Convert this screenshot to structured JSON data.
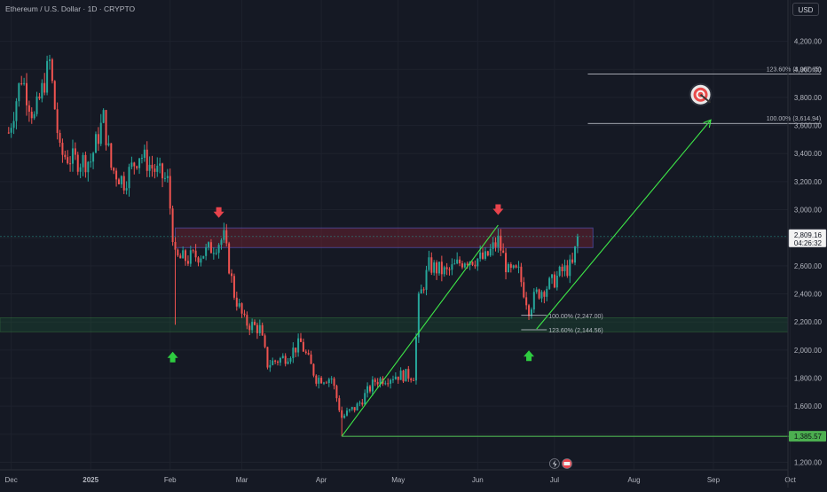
{
  "header": {
    "title": "Ethereum / U.S. Dollar · 1D · CRYPTO",
    "currency": "USD"
  },
  "colors": {
    "bg": "#151924",
    "up": "#26a69a",
    "down": "#ef5350",
    "grid": "#1e222d",
    "text": "#b2b5be",
    "green": "#4caf50",
    "neon": "#3ee848",
    "resistance": "#b7263a",
    "support": "#1f6b3a"
  },
  "chart_data": {
    "type": "candlestick",
    "title": "Ethereum / U.S. Dollar · 1D · CRYPTO",
    "currency": "USD",
    "y_ticks": [
      1200,
      1400,
      1600,
      1800,
      2000,
      2200,
      2400,
      2600,
      2800,
      3000,
      3200,
      3400,
      3600,
      3800,
      4000,
      4200
    ],
    "y_tick_labels": [
      "1,200.00",
      "1,400.00",
      "1,600.00",
      "1,800.00",
      "2,000.00",
      "2,200.00",
      "2,400.00",
      "2,600.00",
      "2,800.00",
      "3,000.00",
      "3,200.00",
      "3,400.00",
      "3,600.00",
      "3,800.00",
      "4,000.00",
      "4,200.00"
    ],
    "ylim": [
      1140,
      4450
    ],
    "x_ticks": [
      {
        "label": "Dec",
        "date": "2024-12-01"
      },
      {
        "label": "2025",
        "date": "2025-01-01"
      },
      {
        "label": "Feb",
        "date": "2025-02-01"
      },
      {
        "label": "Mar",
        "date": "2025-03-01"
      },
      {
        "label": "Apr",
        "date": "2025-04-01"
      },
      {
        "label": "May",
        "date": "2025-05-01"
      },
      {
        "label": "Jun",
        "date": "2025-06-01"
      },
      {
        "label": "Jul",
        "date": "2025-07-01"
      },
      {
        "label": "Aug",
        "date": "2025-08-01"
      },
      {
        "label": "Sep",
        "date": "2025-09-01"
      },
      {
        "label": "Oct",
        "date": "2025-10-01"
      }
    ],
    "xlim": [
      "2024-11-28",
      "2025-10-13"
    ],
    "path_points": [
      {
        "date": "2024-11-30",
        "price": 3550
      },
      {
        "date": "2024-12-05",
        "price": 3950
      },
      {
        "date": "2024-12-10",
        "price": 3650
      },
      {
        "date": "2024-12-16",
        "price": 4050
      },
      {
        "date": "2024-12-20",
        "price": 3400
      },
      {
        "date": "2024-12-26",
        "price": 3350
      },
      {
        "date": "2025-01-01",
        "price": 3350
      },
      {
        "date": "2025-01-06",
        "price": 3650
      },
      {
        "date": "2025-01-09",
        "price": 3300
      },
      {
        "date": "2025-01-14",
        "price": 3200
      },
      {
        "date": "2025-01-20",
        "price": 3400
      },
      {
        "date": "2025-01-25",
        "price": 3300
      },
      {
        "date": "2025-01-31",
        "price": 3200
      },
      {
        "date": "2025-02-03",
        "price": 2650
      },
      {
        "date": "2025-02-08",
        "price": 2650
      },
      {
        "date": "2025-02-15",
        "price": 2700
      },
      {
        "date": "2025-02-22",
        "price": 2800
      },
      {
        "date": "2025-02-26",
        "price": 2400
      },
      {
        "date": "2025-03-02",
        "price": 2200
      },
      {
        "date": "2025-03-08",
        "price": 2150
      },
      {
        "date": "2025-03-11",
        "price": 1900
      },
      {
        "date": "2025-03-18",
        "price": 1950
      },
      {
        "date": "2025-03-24",
        "price": 2050
      },
      {
        "date": "2025-03-30",
        "price": 1800
      },
      {
        "date": "2025-04-05",
        "price": 1800
      },
      {
        "date": "2025-04-09",
        "price": 1520
      },
      {
        "date": "2025-04-15",
        "price": 1600
      },
      {
        "date": "2025-04-22",
        "price": 1780
      },
      {
        "date": "2025-04-30",
        "price": 1820
      },
      {
        "date": "2025-05-07",
        "price": 1820
      },
      {
        "date": "2025-05-09",
        "price": 2350
      },
      {
        "date": "2025-05-13",
        "price": 2600
      },
      {
        "date": "2025-05-20",
        "price": 2550
      },
      {
        "date": "2025-05-27",
        "price": 2650
      },
      {
        "date": "2025-06-04",
        "price": 2650
      },
      {
        "date": "2025-06-09",
        "price": 2780
      },
      {
        "date": "2025-06-13",
        "price": 2550
      },
      {
        "date": "2025-06-17",
        "price": 2550
      },
      {
        "date": "2025-06-21",
        "price": 2300
      },
      {
        "date": "2025-06-24",
        "price": 2400
      },
      {
        "date": "2025-06-30",
        "price": 2480
      },
      {
        "date": "2025-07-04",
        "price": 2560
      },
      {
        "date": "2025-07-08",
        "price": 2600
      },
      {
        "date": "2025-07-10",
        "price": 2809
      }
    ],
    "spike_lows": [
      {
        "date": "2025-02-03",
        "price": 2180
      },
      {
        "date": "2025-04-09",
        "price": 1385
      }
    ],
    "last_price": {
      "value": 2809.16,
      "label": "2,809.16",
      "countdown": "04:26:32"
    },
    "low_level": {
      "value": 1385.57,
      "label": "1,385.57"
    },
    "zones": [
      {
        "name": "resistance",
        "from": 2730,
        "to": 2870
      },
      {
        "name": "support",
        "from": 2130,
        "to": 2230
      }
    ],
    "fib_levels": [
      {
        "label": "123.60% (3,967.65)",
        "value": 3967.65
      },
      {
        "label": "100.00% (3,614.94)",
        "value": 3614.94
      },
      {
        "label": "100.00% (2,247.00)",
        "value": 2247.0
      },
      {
        "label": "123.60% (2,144.56)",
        "value": 2144.56
      }
    ],
    "arrows_markers": [
      {
        "kind": "down",
        "date": "2025-02-20",
        "price": 2980
      },
      {
        "kind": "down",
        "date": "2025-06-09",
        "price": 3000
      },
      {
        "kind": "up",
        "date": "2025-02-02",
        "price": 1950
      },
      {
        "kind": "up",
        "date": "2025-06-21",
        "price": 1960
      }
    ],
    "trend_lines": [
      {
        "from": {
          "date": "2025-04-09",
          "price": 1385
        },
        "to": {
          "date": "2025-06-09",
          "price": 2890
        }
      },
      {
        "from": {
          "date": "2025-06-24",
          "price": 2150
        },
        "to": {
          "date": "2025-08-31",
          "price": 3640
        }
      },
      {
        "from": {
          "date": "2025-04-09",
          "price": 1385
        },
        "to": {
          "date": "2025-10-13",
          "price": 1385
        }
      }
    ],
    "target": {
      "date": "2025-08-27",
      "price": 3820
    }
  }
}
